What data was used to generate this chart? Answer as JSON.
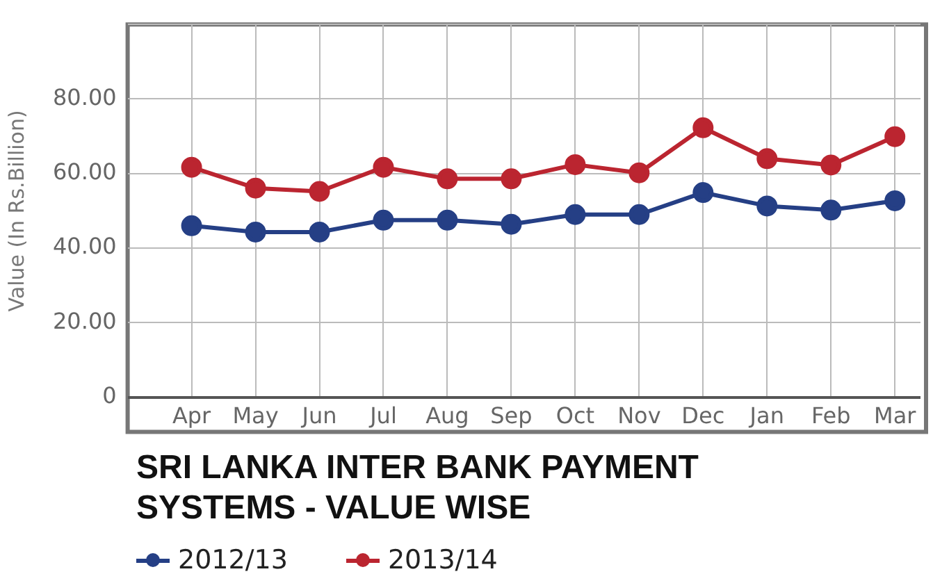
{
  "chart_data": {
    "type": "line",
    "title": "SRI LANKA INTER BANK PAYMENT SYSTEMS - VALUE WISE",
    "ylabel": "Value (In Rs.Billion)",
    "categories": [
      "Apr",
      "May",
      "Jun",
      "Jul",
      "Aug",
      "Sep",
      "Oct",
      "Nov",
      "Dec",
      "Jan",
      "Feb",
      "Mar"
    ],
    "series": [
      {
        "name": "2012/13",
        "color": "#253f85",
        "values": [
          46.0,
          44.3,
          44.3,
          47.5,
          47.5,
          46.4,
          49.0,
          49.0,
          54.9,
          51.3,
          50.2,
          52.7
        ]
      },
      {
        "name": "2013/14",
        "color": "#bb2530",
        "values": [
          61.7,
          56.1,
          55.2,
          61.7,
          58.6,
          58.6,
          62.4,
          60.2,
          72.3,
          64.0,
          62.3,
          69.9
        ]
      }
    ],
    "ylim": [
      0,
      100
    ],
    "yticks": [
      {
        "value": 0,
        "label": "0"
      },
      {
        "value": 20,
        "label": "20.00"
      },
      {
        "value": 40,
        "label": "40.00"
      },
      {
        "value": 60,
        "label": "60.00"
      },
      {
        "value": 80,
        "label": "80.00"
      },
      {
        "value": 100,
        "label": null
      }
    ],
    "grid": true,
    "legend": "bottom",
    "marker": "circle",
    "line_style": "solid"
  }
}
